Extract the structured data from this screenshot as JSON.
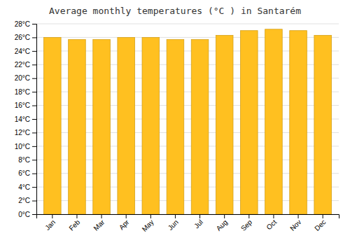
{
  "chart_data": {
    "type": "bar",
    "title": "Average monthly temperatures (°C ) in Santarém",
    "categories": [
      "Jan",
      "Feb",
      "Mar",
      "Apr",
      "May",
      "Jun",
      "Jul",
      "Aug",
      "Sep",
      "Oct",
      "Nov",
      "Dec"
    ],
    "values": [
      26.0,
      25.7,
      25.7,
      26.0,
      26.0,
      25.7,
      25.7,
      26.3,
      27.0,
      27.2,
      27.0,
      26.3
    ],
    "color": "#FFC020",
    "ylim": [
      0,
      28
    ],
    "yticks": [
      {
        "value": 0,
        "label": "0°C"
      },
      {
        "value": 2,
        "label": "2°C"
      },
      {
        "value": 4,
        "label": "4°C"
      },
      {
        "value": 6,
        "label": "6°C"
      },
      {
        "value": 8,
        "label": "8°C"
      },
      {
        "value": 10,
        "label": "10°C"
      },
      {
        "value": 12,
        "label": "12°C"
      },
      {
        "value": 14,
        "label": "14°C"
      },
      {
        "value": 16,
        "label": "16°C"
      },
      {
        "value": 18,
        "label": "18°C"
      },
      {
        "value": 20,
        "label": "20°C"
      },
      {
        "value": 22,
        "label": "22°C"
      },
      {
        "value": 24,
        "label": "24°C"
      },
      {
        "value": 26,
        "label": "26°C"
      },
      {
        "value": 28,
        "label": "28°C"
      }
    ],
    "grid": true
  }
}
